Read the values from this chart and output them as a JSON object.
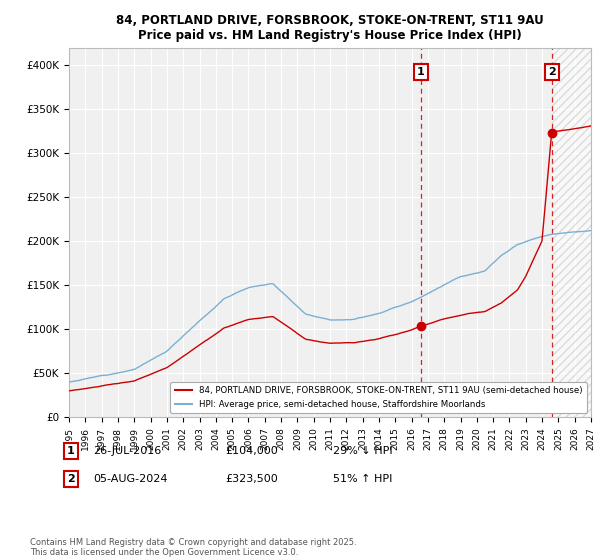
{
  "title": "84, PORTLAND DRIVE, FORSBROOK, STOKE-ON-TRENT, ST11 9AU",
  "subtitle": "Price paid vs. HM Land Registry's House Price Index (HPI)",
  "legend_line1": "84, PORTLAND DRIVE, FORSBROOK, STOKE-ON-TRENT, ST11 9AU (semi-detached house)",
  "legend_line2": "HPI: Average price, semi-detached house, Staffordshire Moorlands",
  "annotation1_date": "26-JUL-2016",
  "annotation1_price": "£104,000",
  "annotation1_hpi": "29% ↓ HPI",
  "annotation2_date": "05-AUG-2024",
  "annotation2_price": "£323,500",
  "annotation2_hpi": "51% ↑ HPI",
  "copyright": "Contains HM Land Registry data © Crown copyright and database right 2025.\nThis data is licensed under the Open Government Licence v3.0.",
  "year_start": 1995,
  "year_end": 2027,
  "ylim_min": 0,
  "ylim_max": 420000,
  "sale1_year": 2016.57,
  "sale1_price": 104000,
  "sale2_year": 2024.59,
  "sale2_price": 323500,
  "red_color": "#cc0000",
  "blue_color": "#7ab0d4",
  "background_color": "#f0f0f0",
  "grid_color": "#ffffff",
  "hatch_color": "#d0d0d0"
}
